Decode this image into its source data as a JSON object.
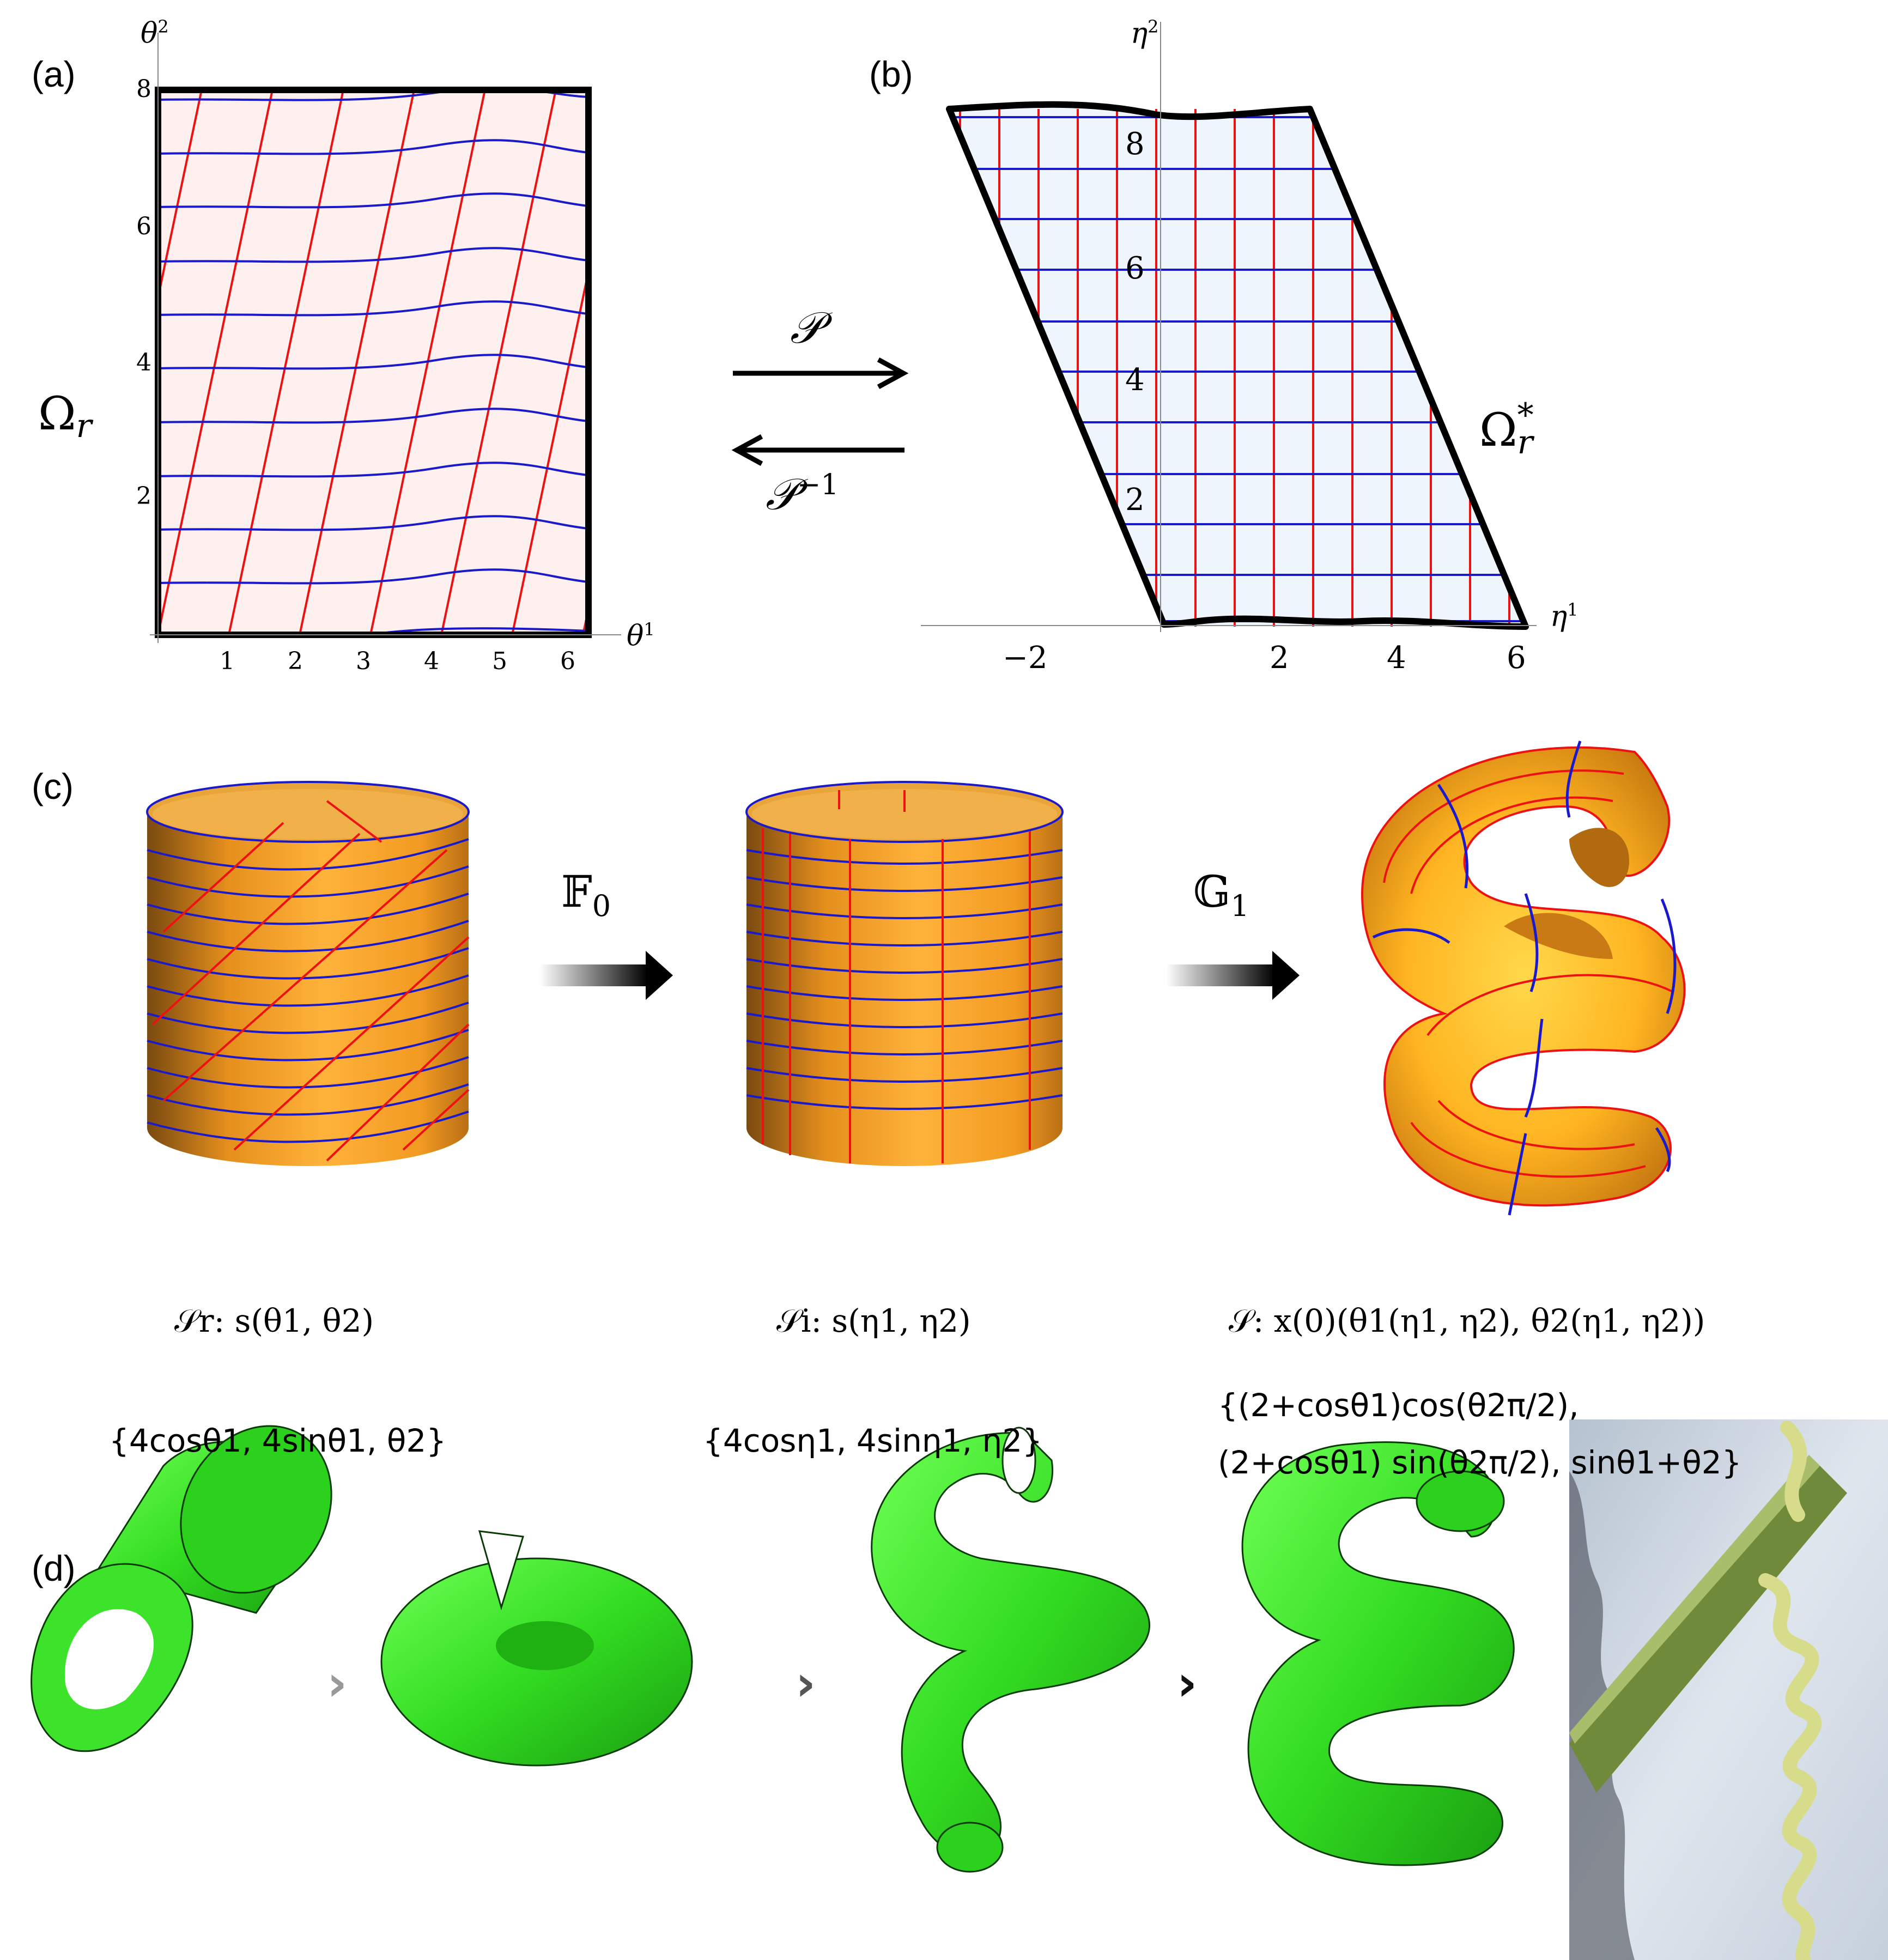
{
  "panels": {
    "a": {
      "label": "(a)",
      "domain_label": "Ω",
      "domain_sub": "r",
      "x_axis": "θ",
      "x_axis_sup": "1",
      "y_axis": "θ",
      "y_axis_sup": "2",
      "x_ticks": [
        "1",
        "2",
        "3",
        "4",
        "5",
        "6"
      ],
      "y_ticks": [
        "2",
        "4",
        "6",
        "8"
      ]
    },
    "b": {
      "label": "(b)",
      "domain_label": "Ω",
      "domain_sub": "r",
      "domain_sup": "*",
      "x_axis": "η",
      "x_axis_sup": "1",
      "y_axis": "η",
      "y_axis_sup": "2",
      "x_ticks": [
        "−2",
        "2",
        "4",
        "6"
      ],
      "y_ticks": [
        "2",
        "4",
        "6",
        "8"
      ]
    },
    "c": {
      "label": "(c)",
      "map1": "𝔽",
      "map1_sub": "0",
      "map2": "𝔾",
      "map2_sub": "1",
      "surface_r": "𝒮r: s(θ1, θ2)",
      "surface_i": "𝒮i: s(η1, η2)",
      "surface_final": "𝒮: x(0)(θ1(η1, η2), θ2(η1, η2))",
      "param_r": "{4cosθ1, 4sinθ1, θ2}",
      "param_i": "{4cosη1, 4sinη1, η2}",
      "param_final_line1": "{(2+cosθ1)cos(θ2π/2),",
      "param_final_line2": "(2+cosθ1) sin(θ2π/2), sinθ1+θ2}"
    },
    "d": {
      "label": "(d)",
      "separator": "›"
    }
  },
  "arrows": {
    "forward_label": "𝒫",
    "inverse_label": "𝒫",
    "inverse_sup": "−1"
  },
  "colors": {
    "grid_red": "#ee1111",
    "grid_blue": "#1a1acc",
    "domain_a_fill": "#fff0f0",
    "domain_b_fill": "#eef5fc",
    "surface_orange": "#f7a227",
    "surface_green": "#33dd22"
  }
}
